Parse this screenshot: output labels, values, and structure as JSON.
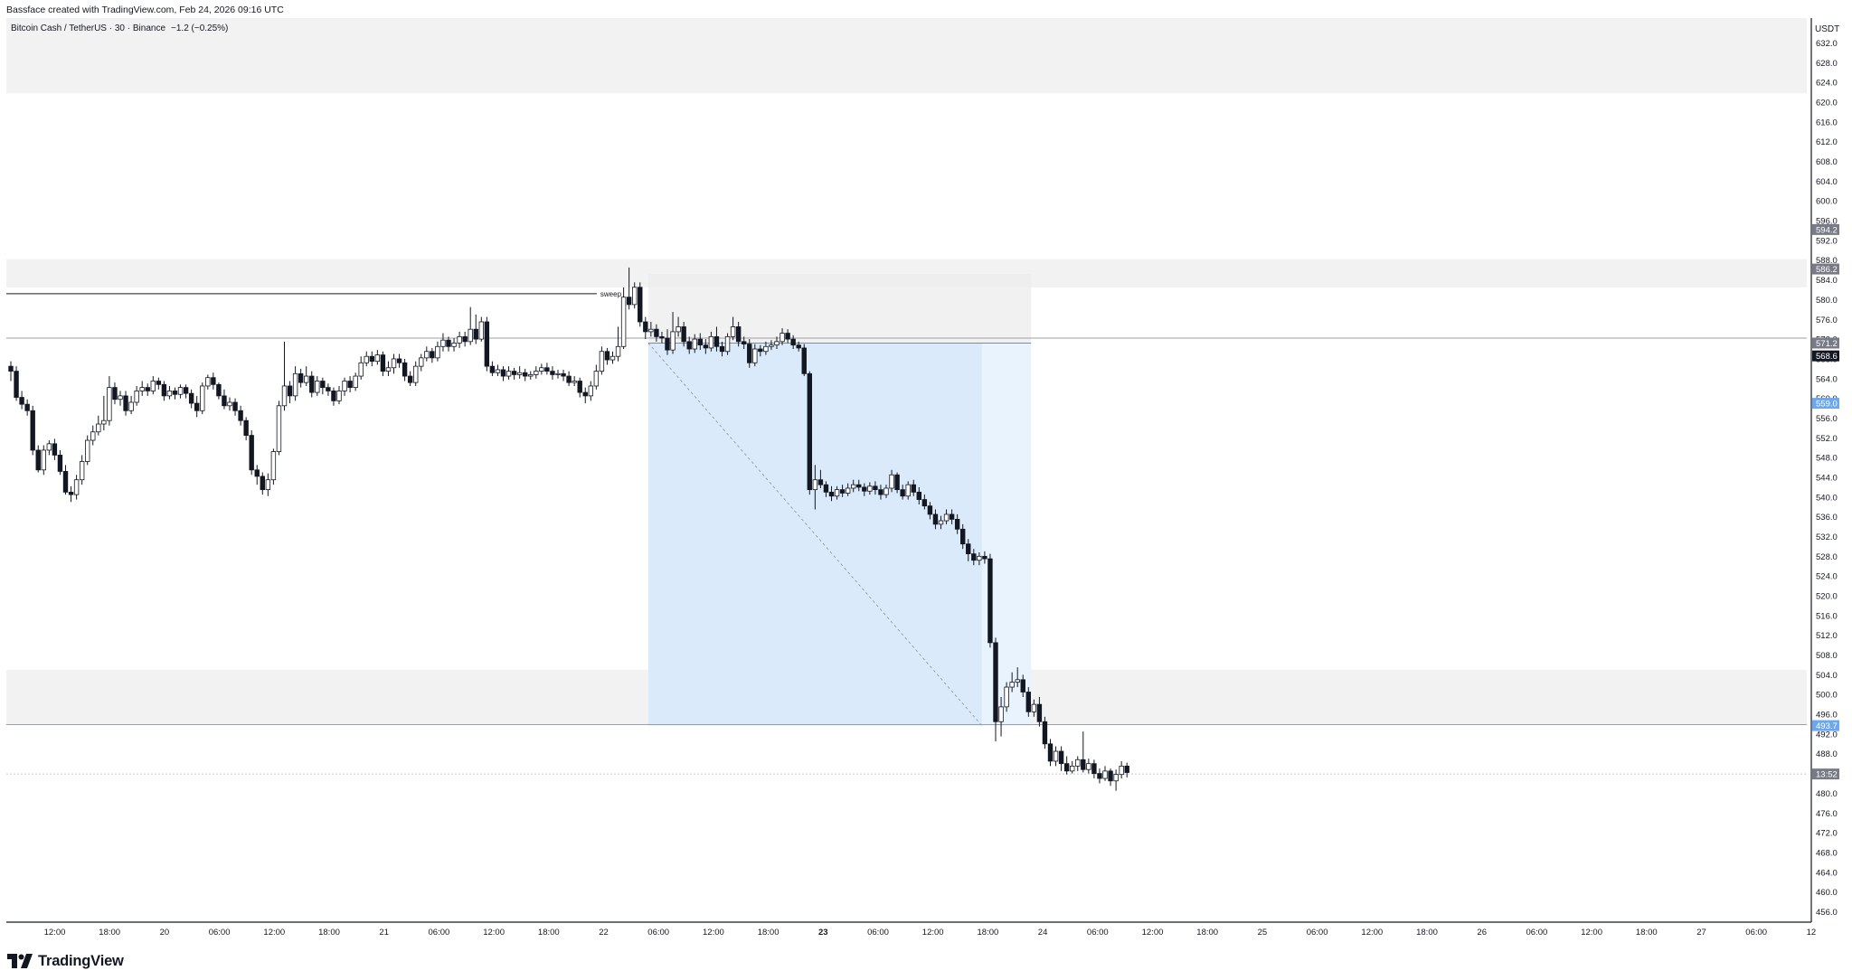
{
  "header": {
    "credit": "Bassface created with TradingView.com, Feb 24, 2026 09:16 UTC"
  },
  "legend": {
    "symbol": "Bitcoin Cash / TetherUS · 30 · Binance",
    "change": "−1.2 (−0.25%)"
  },
  "branding": {
    "name": "TradingView"
  },
  "colors": {
    "up_body": "#ffffff",
    "down_body": "#131722",
    "candle_border": "#131722",
    "zone_fill": "#f2f2f2",
    "target_zone": "#dbeafb",
    "target_zone_light": "#e8f3fd",
    "stop_zone": "#ececec",
    "label_gray": "#787b86",
    "label_blue": "#6da7f2",
    "label_dark": "#131722"
  },
  "chart_data": {
    "type": "candlestick",
    "currency": "USDT",
    "ylim": [
      454,
      635
    ],
    "y_ticks": [
      "632.0",
      "628.0",
      "624.0",
      "620.0",
      "616.0",
      "612.0",
      "608.0",
      "604.0",
      "600.0",
      "596.0",
      "592.0",
      "588.0",
      "584.0",
      "580.0",
      "576.0",
      "572.0",
      "568.0",
      "564.0",
      "560.0",
      "556.0",
      "552.0",
      "548.0",
      "544.0",
      "540.0",
      "536.0",
      "532.0",
      "528.0",
      "524.0",
      "520.0",
      "516.0",
      "512.0",
      "508.0",
      "504.0",
      "500.0",
      "496.0",
      "492.0",
      "488.0",
      "484.0",
      "480.0",
      "476.0",
      "472.0",
      "468.0",
      "464.0",
      "460.0",
      "456.0"
    ],
    "x_ticks": [
      "12:00",
      "18:00",
      "20",
      "06:00",
      "12:00",
      "18:00",
      "21",
      "06:00",
      "12:00",
      "18:00",
      "22",
      "06:00",
      "12:00",
      "18:00",
      "23",
      "06:00",
      "12:00",
      "18:00",
      "24",
      "06:00",
      "12:00",
      "18:00",
      "25",
      "06:00",
      "12:00",
      "18:00",
      "26",
      "06:00",
      "12:00",
      "18:00",
      "27",
      "06:00",
      "12"
    ],
    "x_tick_bold": [
      "23"
    ],
    "bar_interval_minutes": 30,
    "first_bar": "Feb 19 09:00",
    "candles": [
      [
        566.5,
        565.5,
        567.5,
        563.5
      ],
      [
        565.5,
        560.2,
        566.5,
        559.5
      ],
      [
        560.2,
        558.8,
        561.5,
        557.8
      ],
      [
        558.8,
        557.5,
        559.8,
        556.5
      ],
      [
        557.5,
        549.5,
        558.5,
        548.5
      ],
      [
        549.5,
        545.5,
        550.5,
        545.0
      ],
      [
        545.5,
        549.5,
        550.5,
        544.5
      ],
      [
        549.5,
        550.8,
        551.5,
        548.5
      ],
      [
        550.8,
        548.5,
        551.8,
        547.5
      ],
      [
        548.5,
        545.2,
        549.5,
        544.5
      ],
      [
        545.2,
        541.0,
        546.5,
        540.5
      ],
      [
        541.0,
        540.5,
        542.2,
        539.0
      ],
      [
        540.5,
        543.5,
        544.5,
        539.5
      ],
      [
        543.5,
        547.2,
        548.5,
        542.5
      ],
      [
        547.2,
        551.5,
        552.5,
        546.5
      ],
      [
        551.5,
        553.2,
        554.5,
        550.5
      ],
      [
        553.2,
        554.8,
        556.5,
        552.5
      ],
      [
        554.8,
        555.5,
        560.5,
        553.5
      ],
      [
        555.5,
        562.2,
        564.5,
        554.5
      ],
      [
        562.2,
        559.8,
        563.2,
        558.8
      ],
      [
        559.8,
        560.5,
        561.5,
        558.5
      ],
      [
        560.5,
        557.5,
        561.5,
        556.5
      ],
      [
        557.5,
        559.2,
        560.5,
        556.8
      ],
      [
        559.2,
        561.5,
        562.5,
        558.5
      ],
      [
        561.5,
        562.2,
        563.5,
        560.5
      ],
      [
        562.2,
        561.5,
        563.0,
        560.5
      ],
      [
        561.5,
        563.5,
        564.5,
        560.8
      ],
      [
        563.5,
        562.8,
        564.2,
        561.8
      ],
      [
        562.8,
        560.5,
        563.5,
        559.5
      ],
      [
        560.5,
        561.5,
        562.5,
        559.8
      ],
      [
        561.5,
        560.8,
        562.2,
        559.8
      ],
      [
        560.8,
        562.2,
        562.8,
        560.0
      ],
      [
        562.2,
        561.0,
        562.8,
        560.0
      ],
      [
        561.0,
        559.0,
        561.8,
        558.0
      ],
      [
        559.0,
        557.5,
        560.5,
        556.2
      ],
      [
        557.5,
        562.5,
        563.2,
        556.8
      ],
      [
        562.5,
        564.2,
        564.8,
        561.8
      ],
      [
        564.2,
        562.8,
        565.2,
        561.8
      ],
      [
        562.8,
        560.5,
        563.2,
        559.8
      ],
      [
        560.5,
        558.5,
        561.8,
        557.8
      ],
      [
        558.5,
        559.2,
        560.2,
        557.5
      ],
      [
        559.2,
        557.5,
        560.0,
        556.5
      ],
      [
        557.5,
        555.5,
        558.5,
        554.5
      ],
      [
        555.5,
        552.5,
        556.2,
        551.5
      ],
      [
        552.5,
        545.5,
        553.5,
        544.5
      ],
      [
        545.5,
        544.2,
        546.5,
        542.5
      ],
      [
        544.2,
        541.5,
        545.0,
        540.5
      ],
      [
        541.5,
        543.5,
        544.8,
        540.2
      ],
      [
        543.5,
        549.2,
        549.8,
        542.5
      ],
      [
        549.2,
        558.5,
        559.5,
        548.5
      ],
      [
        558.5,
        562.5,
        571.5,
        557.5
      ],
      [
        562.5,
        560.5,
        563.5,
        559.0
      ],
      [
        560.5,
        565.0,
        566.5,
        559.5
      ],
      [
        565.0,
        563.2,
        566.0,
        562.2
      ],
      [
        563.2,
        564.5,
        566.5,
        562.5
      ],
      [
        564.5,
        561.2,
        565.5,
        560.2
      ],
      [
        561.2,
        563.5,
        564.5,
        560.5
      ],
      [
        563.5,
        562.2,
        564.2,
        560.8
      ],
      [
        562.2,
        561.5,
        563.0,
        560.5
      ],
      [
        561.5,
        559.5,
        562.2,
        558.5
      ],
      [
        559.5,
        561.5,
        562.5,
        558.8
      ],
      [
        561.5,
        563.5,
        564.2,
        560.5
      ],
      [
        563.5,
        562.2,
        564.5,
        561.2
      ],
      [
        562.2,
        564.5,
        565.2,
        561.5
      ],
      [
        564.5,
        567.2,
        568.5,
        563.8
      ],
      [
        567.2,
        568.5,
        569.5,
        566.5
      ],
      [
        568.5,
        567.5,
        569.5,
        566.5
      ],
      [
        567.5,
        568.8,
        569.8,
        566.8
      ],
      [
        568.8,
        565.5,
        569.5,
        564.5
      ],
      [
        565.5,
        566.2,
        567.5,
        564.5
      ],
      [
        566.2,
        568.0,
        569.0,
        565.0
      ],
      [
        568.0,
        567.2,
        569.0,
        566.2
      ],
      [
        567.2,
        564.5,
        568.0,
        563.5
      ],
      [
        564.5,
        563.2,
        565.5,
        562.5
      ],
      [
        563.2,
        566.5,
        567.5,
        562.5
      ],
      [
        566.5,
        568.2,
        569.0,
        565.5
      ],
      [
        568.2,
        569.5,
        570.5,
        567.5
      ],
      [
        569.5,
        568.2,
        570.2,
        567.2
      ],
      [
        568.2,
        570.5,
        571.5,
        567.5
      ],
      [
        570.5,
        571.8,
        573.2,
        569.5
      ],
      [
        571.8,
        570.5,
        572.5,
        569.5
      ],
      [
        570.5,
        571.2,
        572.2,
        569.5
      ],
      [
        571.2,
        572.5,
        573.5,
        570.2
      ],
      [
        572.5,
        571.5,
        573.5,
        570.5
      ],
      [
        571.5,
        574.0,
        578.5,
        570.8
      ],
      [
        574.0,
        572.0,
        577.0,
        571.0
      ],
      [
        572.0,
        575.5,
        576.5,
        571.5
      ],
      [
        575.5,
        566.5,
        576.5,
        565.5
      ],
      [
        566.5,
        565.2,
        567.5,
        564.5
      ],
      [
        565.2,
        565.8,
        566.8,
        564.5
      ],
      [
        565.8,
        564.5,
        566.5,
        563.5
      ],
      [
        564.5,
        565.5,
        566.5,
        563.8
      ],
      [
        565.5,
        564.8,
        566.2,
        563.8
      ],
      [
        564.8,
        565.2,
        566.5,
        564.0
      ],
      [
        565.2,
        564.5,
        566.0,
        563.5
      ],
      [
        564.5,
        564.8,
        565.5,
        563.8
      ],
      [
        564.8,
        565.5,
        566.5,
        564.0
      ],
      [
        565.5,
        566.2,
        567.0,
        564.8
      ],
      [
        566.2,
        565.5,
        567.2,
        564.8
      ],
      [
        565.5,
        564.8,
        566.5,
        563.8
      ],
      [
        564.8,
        565.0,
        565.8,
        564.0
      ],
      [
        565.0,
        564.5,
        565.8,
        563.5
      ],
      [
        564.5,
        563.2,
        565.5,
        562.5
      ],
      [
        563.2,
        563.5,
        564.5,
        562.5
      ],
      [
        563.5,
        561.2,
        564.2,
        560.2
      ],
      [
        561.2,
        560.5,
        562.2,
        559.0
      ],
      [
        560.5,
        562.5,
        563.5,
        559.5
      ],
      [
        562.5,
        565.5,
        566.8,
        561.8
      ],
      [
        565.5,
        569.5,
        570.5,
        564.8
      ],
      [
        569.5,
        567.8,
        570.2,
        566.8
      ],
      [
        567.8,
        568.5,
        569.5,
        567.0
      ],
      [
        568.5,
        570.5,
        574.5,
        567.5
      ],
      [
        570.5,
        580.5,
        582.5,
        570.0
      ],
      [
        580.5,
        579.0,
        586.5,
        578.0
      ],
      [
        579.0,
        582.5,
        583.5,
        578.2
      ],
      [
        582.5,
        575.5,
        583.5,
        574.5
      ],
      [
        575.5,
        573.5,
        576.5,
        572.0
      ],
      [
        573.5,
        574.0,
        575.5,
        572.5
      ],
      [
        574.0,
        572.5,
        575.0,
        571.5
      ],
      [
        572.5,
        572.2,
        573.5,
        571.2
      ],
      [
        572.2,
        569.8,
        574.0,
        568.8
      ],
      [
        569.8,
        573.5,
        577.5,
        569.0
      ],
      [
        573.5,
        574.5,
        576.5,
        572.5
      ],
      [
        574.5,
        571.5,
        575.5,
        570.5
      ],
      [
        571.5,
        570.0,
        572.5,
        569.0
      ],
      [
        570.0,
        572.0,
        573.0,
        569.2
      ],
      [
        572.0,
        570.8,
        573.2,
        569.8
      ],
      [
        570.8,
        570.2,
        572.0,
        569.0
      ],
      [
        570.2,
        572.5,
        573.5,
        569.5
      ],
      [
        572.5,
        570.5,
        574.5,
        569.5
      ],
      [
        570.5,
        569.5,
        571.5,
        568.5
      ],
      [
        569.5,
        572.5,
        573.2,
        568.8
      ],
      [
        572.5,
        574.5,
        576.5,
        571.8
      ],
      [
        574.5,
        571.5,
        575.5,
        570.5
      ],
      [
        571.5,
        571.0,
        572.5,
        570.0
      ],
      [
        571.0,
        567.2,
        572.0,
        566.2
      ],
      [
        567.2,
        570.0,
        571.0,
        566.5
      ],
      [
        570.0,
        569.5,
        570.8,
        568.5
      ],
      [
        569.5,
        570.5,
        571.5,
        568.8
      ],
      [
        570.5,
        570.8,
        571.8,
        569.8
      ],
      [
        570.8,
        571.5,
        572.5,
        570.0
      ],
      [
        571.5,
        573.2,
        574.2,
        570.8
      ],
      [
        573.2,
        572.0,
        574.0,
        571.2
      ],
      [
        572.0,
        570.8,
        572.8,
        570.0
      ],
      [
        570.8,
        570.2,
        571.5,
        569.5
      ],
      [
        570.2,
        565.0,
        571.0,
        564.5
      ],
      [
        565.0,
        541.5,
        565.5,
        540.5
      ],
      [
        541.5,
        543.5,
        546.5,
        537.5
      ],
      [
        543.5,
        542.5,
        545.5,
        541.8
      ],
      [
        542.5,
        541.0,
        543.2,
        540.0
      ],
      [
        541.0,
        540.2,
        542.2,
        539.2
      ],
      [
        540.2,
        541.5,
        542.2,
        539.5
      ],
      [
        541.5,
        540.8,
        542.5,
        540.0
      ],
      [
        540.8,
        541.8,
        542.8,
        540.2
      ],
      [
        541.8,
        542.5,
        543.5,
        541.0
      ],
      [
        542.5,
        542.0,
        543.5,
        541.2
      ],
      [
        542.0,
        541.2,
        542.8,
        540.2
      ],
      [
        541.2,
        542.2,
        543.0,
        540.5
      ],
      [
        542.2,
        541.5,
        543.2,
        540.5
      ],
      [
        541.5,
        540.5,
        542.5,
        539.5
      ],
      [
        540.5,
        541.8,
        542.5,
        539.8
      ],
      [
        541.8,
        544.5,
        545.5,
        541.0
      ],
      [
        544.5,
        541.5,
        545.0,
        540.8
      ],
      [
        541.5,
        540.2,
        542.5,
        539.5
      ],
      [
        540.2,
        542.5,
        543.2,
        539.5
      ],
      [
        542.5,
        541.0,
        543.5,
        540.2
      ],
      [
        541.0,
        539.5,
        542.0,
        538.5
      ],
      [
        539.5,
        538.2,
        540.5,
        537.5
      ],
      [
        538.2,
        536.5,
        539.0,
        535.5
      ],
      [
        536.5,
        534.5,
        537.5,
        533.5
      ],
      [
        534.5,
        535.2,
        536.2,
        533.5
      ],
      [
        535.2,
        536.5,
        537.5,
        534.5
      ],
      [
        536.5,
        535.5,
        537.5,
        534.5
      ],
      [
        535.5,
        533.5,
        536.5,
        532.5
      ],
      [
        533.5,
        530.5,
        534.5,
        529.5
      ],
      [
        530.5,
        528.5,
        531.5,
        527.0
      ],
      [
        528.5,
        527.2,
        529.5,
        526.2
      ],
      [
        527.2,
        528.0,
        528.8,
        526.2
      ],
      [
        528.0,
        527.5,
        529.0,
        526.5
      ],
      [
        527.5,
        510.5,
        528.5,
        509.5
      ],
      [
        510.5,
        494.5,
        511.5,
        490.5
      ],
      [
        494.5,
        497.5,
        499.5,
        491.5
      ],
      [
        497.5,
        501.5,
        502.5,
        496.5
      ],
      [
        501.5,
        502.5,
        504.5,
        500.5
      ],
      [
        502.5,
        503.0,
        505.5,
        501.5
      ],
      [
        503.0,
        500.5,
        504.0,
        499.5
      ],
      [
        500.5,
        496.5,
        501.5,
        495.5
      ],
      [
        496.5,
        498.0,
        499.0,
        495.5
      ],
      [
        498.0,
        494.5,
        499.5,
        493.5
      ],
      [
        494.5,
        490.0,
        495.5,
        489.0
      ],
      [
        490.0,
        486.5,
        491.0,
        485.5
      ],
      [
        486.5,
        488.5,
        489.5,
        485.5
      ],
      [
        488.5,
        486.0,
        489.5,
        484.5
      ],
      [
        486.0,
        484.5,
        487.5,
        483.8
      ],
      [
        484.5,
        485.5,
        486.5,
        484.0
      ],
      [
        485.5,
        486.8,
        487.5,
        484.5
      ],
      [
        486.8,
        484.8,
        492.5,
        484.2
      ],
      [
        484.8,
        486.0,
        487.0,
        484.0
      ],
      [
        486.0,
        484.0,
        486.8,
        483.0
      ],
      [
        484.0,
        483.0,
        485.0,
        482.0
      ],
      [
        483.0,
        484.5,
        485.5,
        482.5
      ],
      [
        484.5,
        482.5,
        485.0,
        481.5
      ],
      [
        482.5,
        483.8,
        484.8,
        480.5
      ],
      [
        483.8,
        485.5,
        486.5,
        483.0
      ],
      [
        485.5,
        484.2,
        486.2,
        483.2
      ]
    ],
    "zones": [
      {
        "name": "supply-zone-top",
        "top": 635,
        "bottom": 621.8
      },
      {
        "name": "supply-zone-mid",
        "top": 588.2,
        "bottom": 582.5
      },
      {
        "name": "demand-zone",
        "top": 505.0,
        "bottom": 494.0
      }
    ],
    "position": {
      "type": "short",
      "entry": 571.2,
      "stop": 585.2,
      "target": 493.7,
      "start_bar": 117,
      "end_bar": 186,
      "elapsed_end_bar": 177
    },
    "horizontal_lines": [
      {
        "name": "level-line-upper",
        "price": 572.2
      },
      {
        "name": "level-line-lower",
        "price": 493.9
      }
    ],
    "sweep": {
      "label": "sweep",
      "price": 581.2,
      "from_bar": 0,
      "to_bar": 98
    },
    "current_price_line": 483.9,
    "price_labels": [
      {
        "text": "594.2",
        "price": 594.2,
        "style": "gray"
      },
      {
        "text": "586.2",
        "price": 586.2,
        "style": "gray"
      },
      {
        "text": "571.2",
        "price": 571.2,
        "style": "gray"
      },
      {
        "text": "568.6",
        "price": 568.6,
        "style": "dark"
      },
      {
        "text": "559.0",
        "price": 559.0,
        "style": "blue"
      },
      {
        "text": "493.7",
        "price": 493.7,
        "style": "blue"
      },
      {
        "text": "13:52",
        "price": 483.9,
        "style": "gray"
      }
    ]
  }
}
